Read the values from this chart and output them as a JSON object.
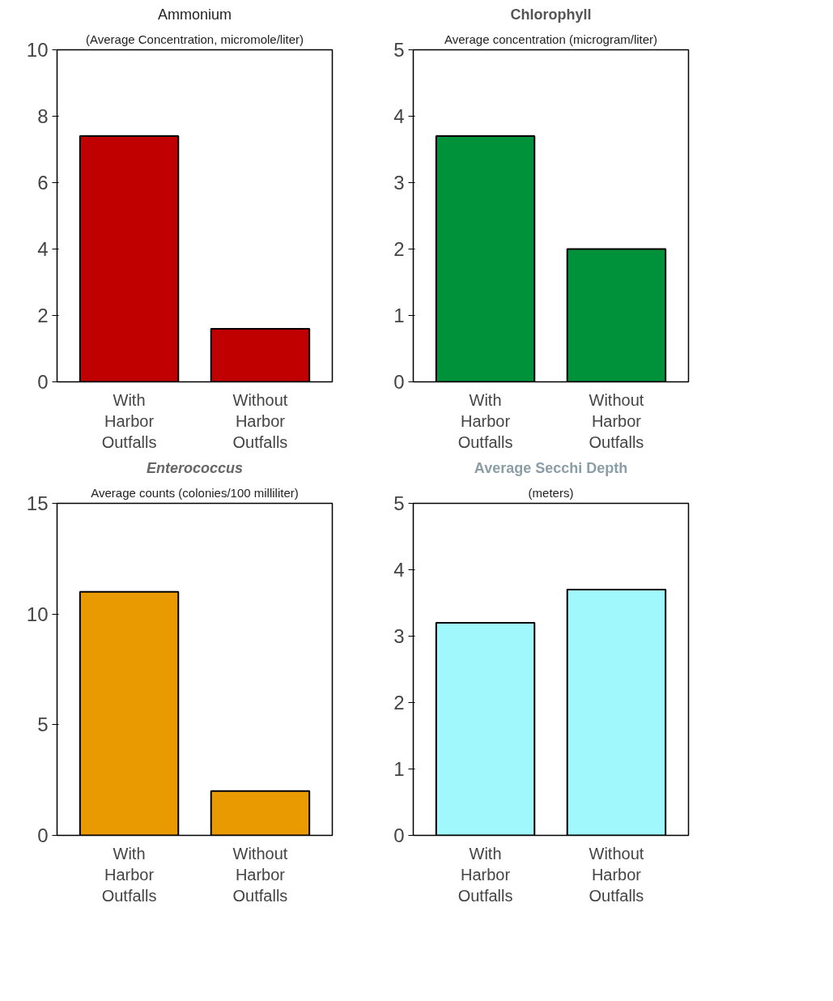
{
  "chart_data": [
    {
      "type": "bar",
      "title": "Ammonium",
      "subtitle": "(Average Concentration, micromole/liter)",
      "categories": [
        "With Harbor Outfalls",
        "Without Harbor Outfalls"
      ],
      "values": [
        7.4,
        1.6
      ],
      "color": "#c00000",
      "ylim": [
        0,
        10
      ],
      "yticks": [
        0,
        2,
        4,
        6,
        8,
        10
      ],
      "grid": false
    },
    {
      "type": "bar",
      "title": "Chlorophyll",
      "subtitle": "Average concentration (microgram/liter)",
      "categories": [
        "With Harbor Outfalls",
        "Without Harbor Outfalls"
      ],
      "values": [
        3.7,
        2.0
      ],
      "color": "#00923a",
      "ylim": [
        0,
        5
      ],
      "yticks": [
        0,
        1,
        2,
        3,
        4,
        5
      ],
      "grid": false
    },
    {
      "type": "bar",
      "title": "Enterococcus",
      "subtitle": "Average counts (colonies/100 milliliter)",
      "categories": [
        "With Harbor Outfalls",
        "Without Harbor Outfalls"
      ],
      "values": [
        11.0,
        2.0
      ],
      "color": "#e89a00",
      "ylim": [
        0,
        15
      ],
      "yticks": [
        0,
        5,
        10,
        15
      ],
      "grid": false
    },
    {
      "type": "bar",
      "title": "Average Secchi Depth",
      "subtitle": "(meters)",
      "categories": [
        "With Harbor Outfalls",
        "Without Harbor Outfalls"
      ],
      "values": [
        3.2,
        3.7
      ],
      "color": "#a0f8fc",
      "ylim": [
        0,
        5
      ],
      "yticks": [
        0,
        1,
        2,
        3,
        4,
        5
      ],
      "grid": false
    }
  ]
}
